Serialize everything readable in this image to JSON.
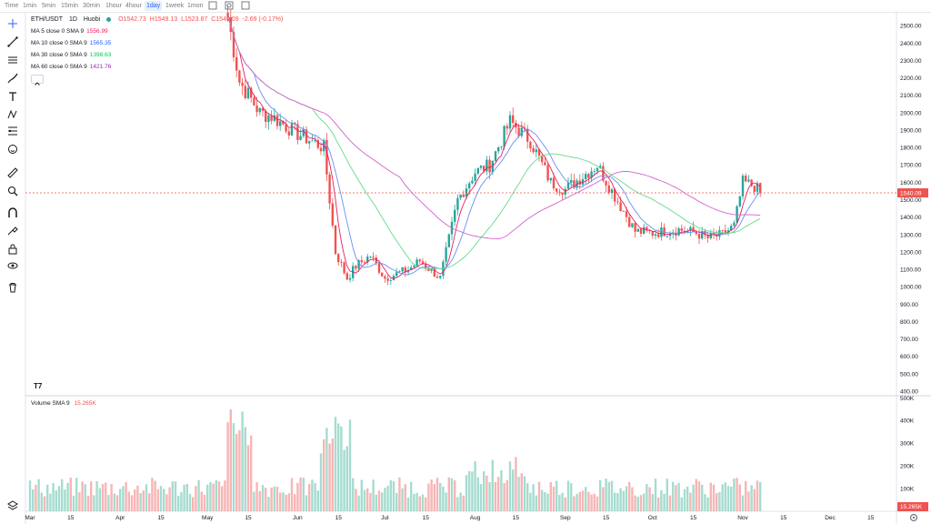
{
  "toolbar": {
    "timeframes": [
      {
        "label": "Time",
        "active": false
      },
      {
        "label": "1min",
        "active": false
      },
      {
        "label": "5min",
        "active": false
      },
      {
        "label": "15min",
        "active": false
      },
      {
        "label": "30min",
        "active": false
      },
      {
        "label": "1hour",
        "active": false
      },
      {
        "label": "4hour",
        "active": false
      },
      {
        "label": "1day",
        "active": true
      },
      {
        "label": "1week",
        "active": false
      },
      {
        "label": "1mon",
        "active": false
      }
    ],
    "icons": [
      "indicators-icon",
      "settings-icon",
      "fullscreen-icon"
    ]
  },
  "left_tools": [
    "crosshair-icon",
    "trend-line-icon",
    "horizontal-lines-icon",
    "brush-icon",
    "text-icon",
    "pattern-icon",
    "fib-icon",
    "emoji-icon",
    "ruler-icon",
    "zoom-icon",
    "magnet-icon",
    "lock-drawings-icon",
    "lock-icon",
    "eye-icon",
    "trash-icon",
    "layers-icon"
  ],
  "legend": {
    "symbol": "ETH/USDT",
    "interval": "1D",
    "exchange": "Huobi",
    "open": "O1542.73",
    "high": "H1549.13",
    "low": "L1523.87",
    "close": "C1540.09",
    "change": "-2.69 (-0.17%)",
    "ma": [
      {
        "label": "MA 5 close 0 SMA 9",
        "value": "1556.99",
        "color": "#e91e63"
      },
      {
        "label": "MA 10 close 0 SMA 9",
        "value": "1565.35",
        "color": "#2962ff"
      },
      {
        "label": "MA 30 close 0 SMA 9",
        "value": "1398.63",
        "color": "#00c853"
      },
      {
        "label": "MA 60 close 0 SMA 9",
        "value": "1421.76",
        "color": "#9c27b0"
      }
    ],
    "volume_label": "Volume SMA 9",
    "volume_value": "15.265K"
  },
  "last_price_label": "1540.09",
  "colors": {
    "up": "#26a69a",
    "down": "#ef5350",
    "up_vol": "#a5dccf",
    "down_vol": "#f7b5b5",
    "ma5": "#e91e63",
    "ma10": "#6b8ff0",
    "ma30": "#66d98a",
    "ma60": "#d063c9"
  },
  "chart_data": {
    "type": "candlestick",
    "y_ticks": [
      "2500.00",
      "2400.00",
      "2300.00",
      "2200.00",
      "2100.00",
      "2000.00",
      "1900.00",
      "1800.00",
      "1700.00",
      "1600.00",
      "1500.00",
      "1400.00",
      "1300.00",
      "1200.00",
      "1100.00",
      "1000.00",
      "900.00",
      "800.00",
      "700.00",
      "600.00",
      "500.00",
      "400.00"
    ],
    "y_range": [
      375,
      2575
    ],
    "volume_ticks": [
      "500K",
      "400K",
      "300K",
      "200K",
      "100K"
    ],
    "volume_range": [
      0,
      510
    ],
    "x_labels": [
      "Mar",
      "15",
      "Apr",
      "15",
      "May",
      "15",
      "Jun",
      "15",
      "Jul",
      "15",
      "Aug",
      "15",
      "Sep",
      "15",
      "Oct",
      "15",
      "Nov",
      "15",
      "Dec",
      "15"
    ],
    "series_summary": {
      "x": [
        "May 8",
        "May 12",
        "May 19",
        "May 23",
        "Jun 1",
        "Jun 10",
        "Jun 14",
        "Jun 18",
        "Jun 21",
        "Jun 26",
        "Jul 1",
        "Jul 9",
        "Jul 13",
        "Jul 20",
        "Jul 26",
        "Aug 1",
        "Aug 6",
        "Aug 13",
        "Aug 20",
        "Aug 27",
        "Sep 1",
        "Sep 8",
        "Sep 12",
        "Sep 16",
        "Sep 25",
        "Oct 1",
        "Oct 10",
        "Oct 16",
        "Oct 20",
        "Oct 25",
        "Oct 29",
        "Nov 1",
        "Nov 5",
        "Nov 7"
      ],
      "close": [
        2550,
        2180,
        2000,
        1980,
        1880,
        1800,
        1200,
        1050,
        1120,
        1180,
        1050,
        1100,
        1150,
        1050,
        1500,
        1660,
        1700,
        1950,
        1840,
        1600,
        1560,
        1650,
        1700,
        1580,
        1320,
        1310,
        1330,
        1310,
        1280,
        1300,
        1350,
        1600,
        1580,
        1540
      ]
    }
  }
}
